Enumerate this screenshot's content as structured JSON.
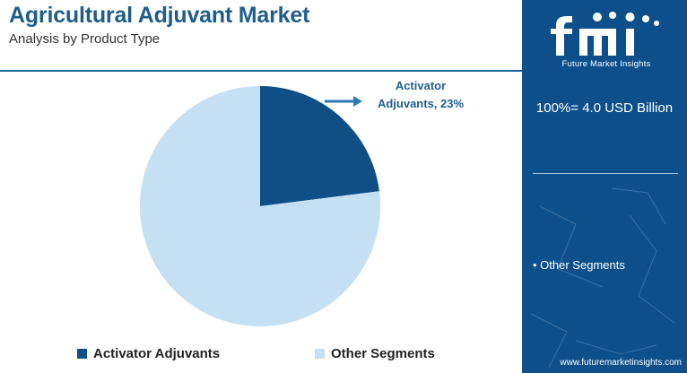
{
  "header": {
    "title": "Agricultural Adjuvant Market",
    "subtitle": "Analysis by Product Type"
  },
  "chart_data": {
    "type": "pie",
    "title": "Agricultural Adjuvant Market",
    "subtitle": "Analysis by Product Type",
    "slices": [
      {
        "label": "Activator Adjuvants",
        "value": 23,
        "color": "#0f4f86"
      },
      {
        "label": "Other Segments",
        "value": 77,
        "color": "#c5e0f3"
      }
    ],
    "annotations": [
      {
        "line1": "Activator",
        "line2": "Adjuvants, 23%"
      }
    ],
    "legend_position": "bottom",
    "start_angle_deg": 0,
    "direction": "clockwise"
  },
  "legend": [
    {
      "label": "Activator Adjuvants",
      "color": "#0f4f86"
    },
    {
      "label": "Other Segments",
      "color": "#c5e0f3"
    }
  ],
  "side_panel": {
    "brand_logo": "fmi",
    "brand_name": "Future Market Insights",
    "total_label": "100%= 4.0 USD Billion",
    "items": [
      "• Other Segments"
    ],
    "website": "www.futuremarketinsights.com",
    "background_color": "#0d4f8b"
  },
  "colors": {
    "accent": "#1f5e8c",
    "arrow": "#2a79b8"
  }
}
